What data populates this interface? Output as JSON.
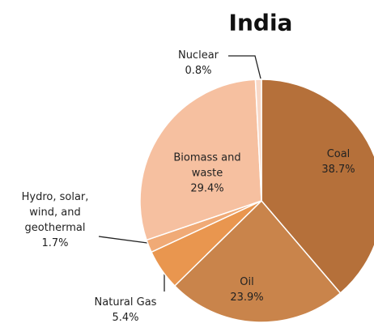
{
  "chart_data": {
    "type": "pie",
    "title": "India",
    "categories": [
      "Coal",
      "Oil",
      "Natural Gas",
      "Hydro, solar, wind, and geothermal",
      "Biomass and waste",
      "Nuclear"
    ],
    "values": [
      38.7,
      23.9,
      5.4,
      1.7,
      29.4,
      0.8
    ],
    "value_labels": [
      "38.7%",
      "23.9%",
      "5.4%",
      "1.7%",
      "29.4%",
      "0.8%"
    ],
    "colors": [
      "#b5703a",
      "#c9844b",
      "#e9964f",
      "#f0aa76",
      "#f6c0a0",
      "#f8d8c7"
    ]
  }
}
